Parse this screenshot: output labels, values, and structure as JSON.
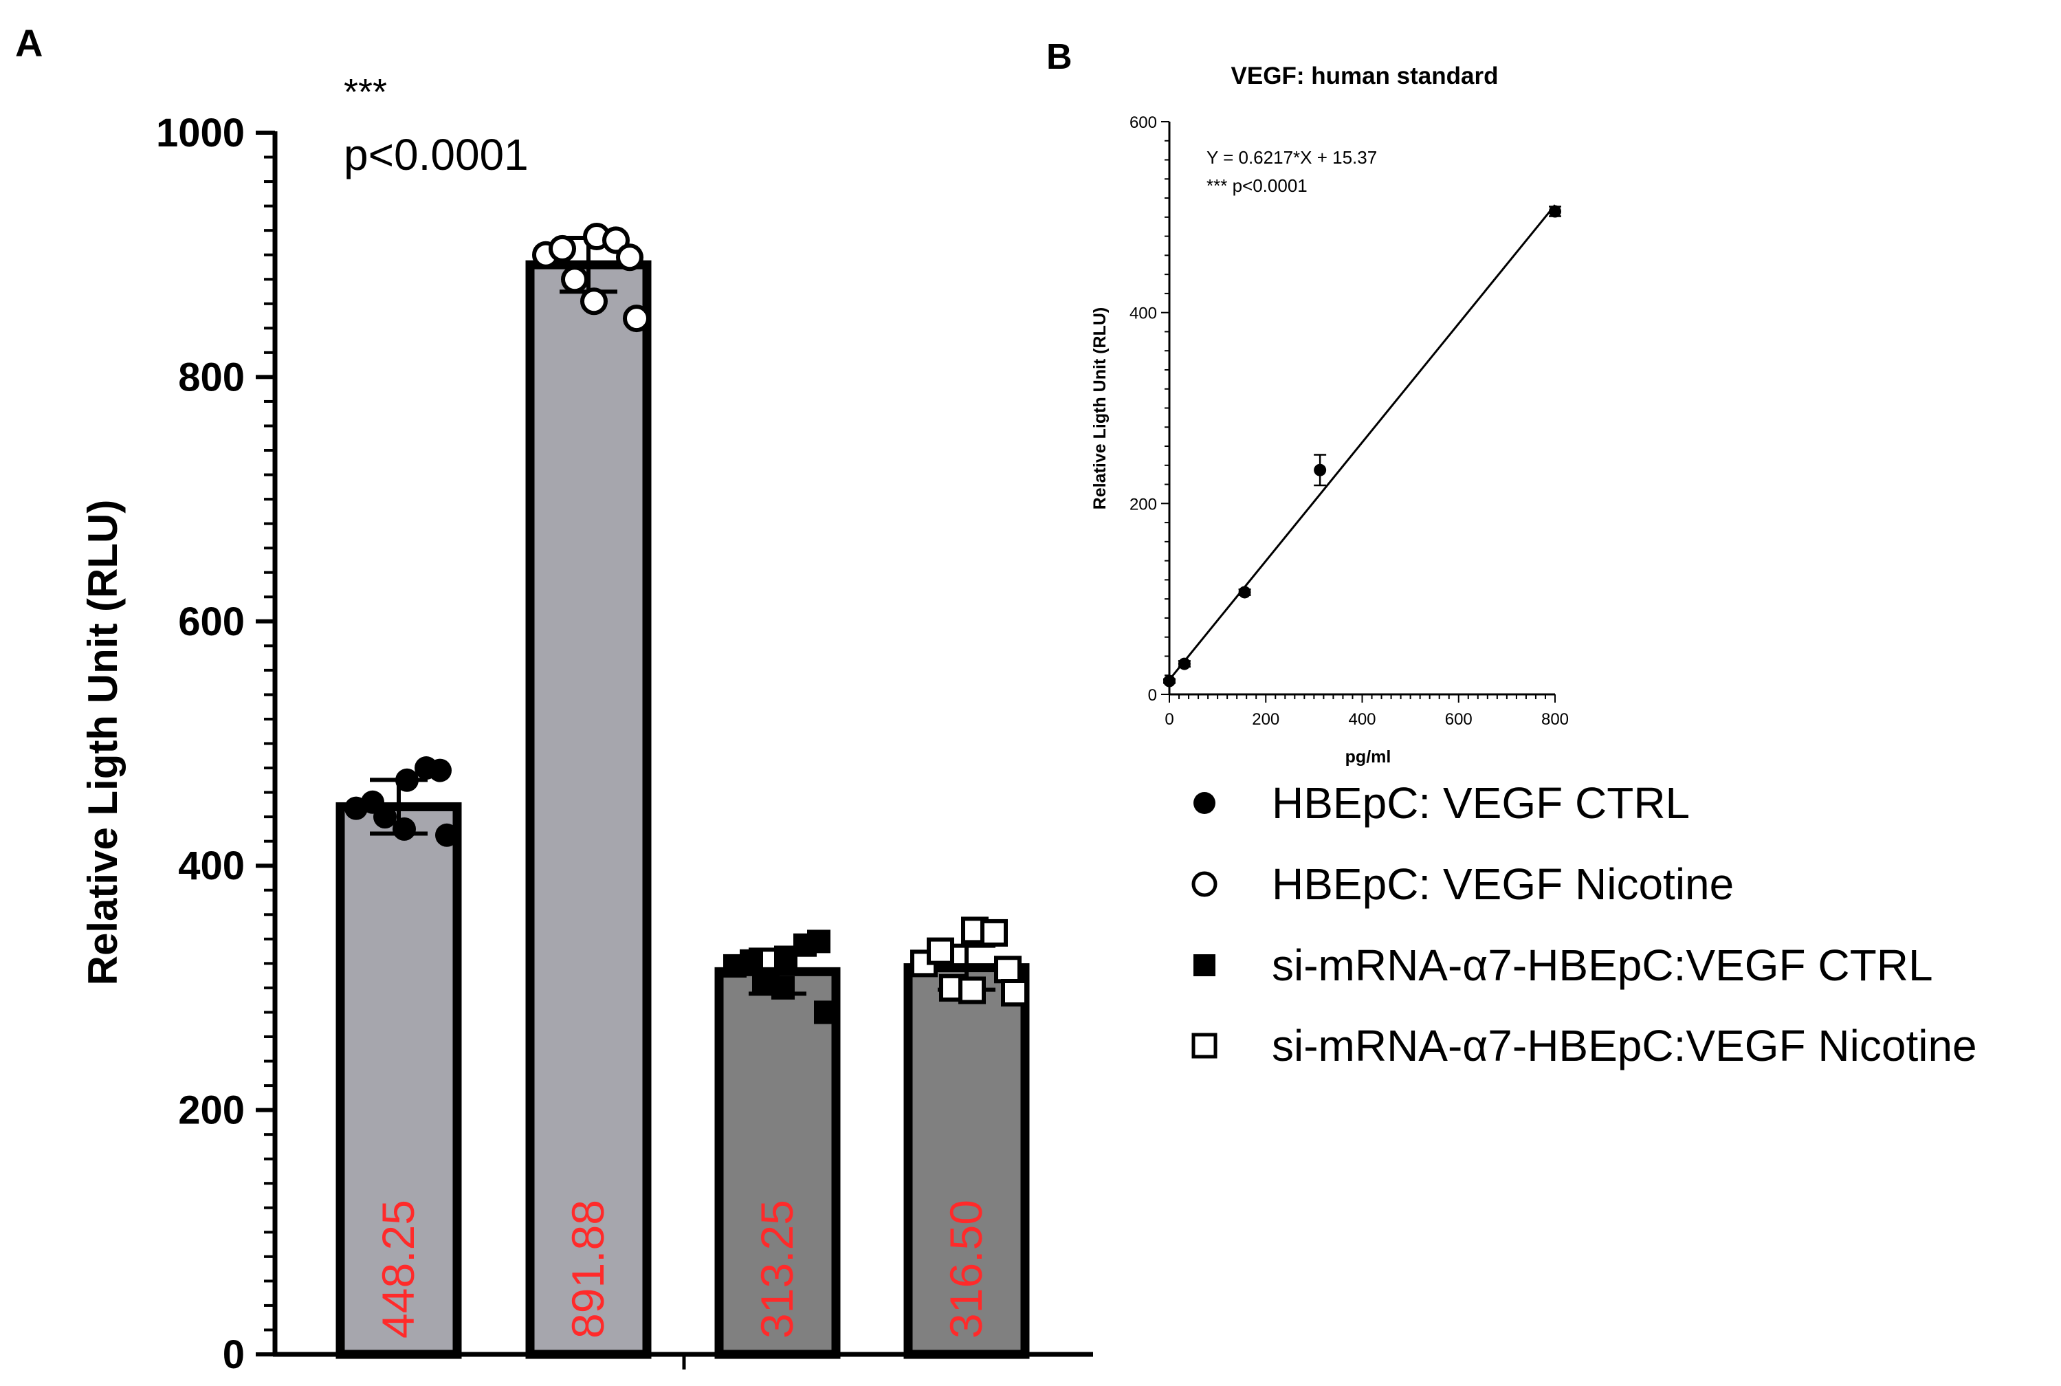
{
  "panels": {
    "a_label": "A",
    "b_label": "B"
  },
  "colors": {
    "bar_light": "#a6a6ad",
    "bar_dark": "#808080",
    "value_label": "#ff2a2a",
    "ink": "#000000"
  },
  "chart_data": [
    {
      "panel": "A",
      "type": "bar",
      "title": "",
      "xlabel": "",
      "ylabel": "Relative Ligth Unit (RLU)",
      "ylim": [
        0,
        1000
      ],
      "yticks": [
        0,
        200,
        400,
        600,
        800,
        1000
      ],
      "categories": [
        "HBEpC: VEGF CTRL",
        "HBEpC: VEGF Nicotine",
        "si-mRNA-α7-HBEpC:VEGF CTRL",
        "si-mRNA-α7-HBEpC:VEGF Nicotine"
      ],
      "values": [
        448.25,
        891.88,
        313.25,
        316.5
      ],
      "value_labels": [
        "448.25",
        "891.88",
        "313.25",
        "316.50"
      ],
      "error": [
        22,
        22,
        18,
        18
      ],
      "points": [
        [
          447,
          452,
          470,
          480,
          478,
          440,
          430,
          425
        ],
        [
          900,
          905,
          915,
          912,
          898,
          880,
          862,
          848
        ],
        [
          318,
          322,
          325,
          335,
          338,
          306,
          300,
          280
        ],
        [
          320,
          330,
          347,
          345,
          315,
          300,
          298,
          296
        ]
      ],
      "significance": {
        "stars": "***",
        "text": "p<0.0001"
      },
      "legend": {
        "position": "right",
        "items": [
          {
            "label": "HBEpC: VEGF CTRL",
            "marker": "filled-circle"
          },
          {
            "label": "HBEpC: VEGF Nicotine",
            "marker": "open-circle"
          },
          {
            "label": "si-mRNA-α7-HBEpC:VEGF CTRL",
            "marker": "filled-square"
          },
          {
            "label": "si-mRNA-α7-HBEpC:VEGF Nicotine",
            "marker": "open-square"
          }
        ]
      }
    },
    {
      "panel": "B",
      "type": "scatter",
      "title": "VEGF: human standard",
      "xlabel": "pg/ml",
      "ylabel": "Relative Ligth Unit (RLU)",
      "xlim": [
        0,
        800
      ],
      "ylim": [
        0,
        600
      ],
      "xticks": [
        0,
        200,
        400,
        600,
        800
      ],
      "yticks": [
        0,
        200,
        400,
        600
      ],
      "x": [
        0,
        31.25,
        156.25,
        312.5,
        800
      ],
      "y": [
        14,
        32,
        107,
        235,
        506
      ],
      "error": [
        2,
        3,
        3,
        16,
        5
      ],
      "fit": {
        "slope": 0.6217,
        "intercept": 15.37
      },
      "annotations": [
        "Y = 0.6217*X + 15.37",
        "*** p<0.0001"
      ]
    }
  ]
}
